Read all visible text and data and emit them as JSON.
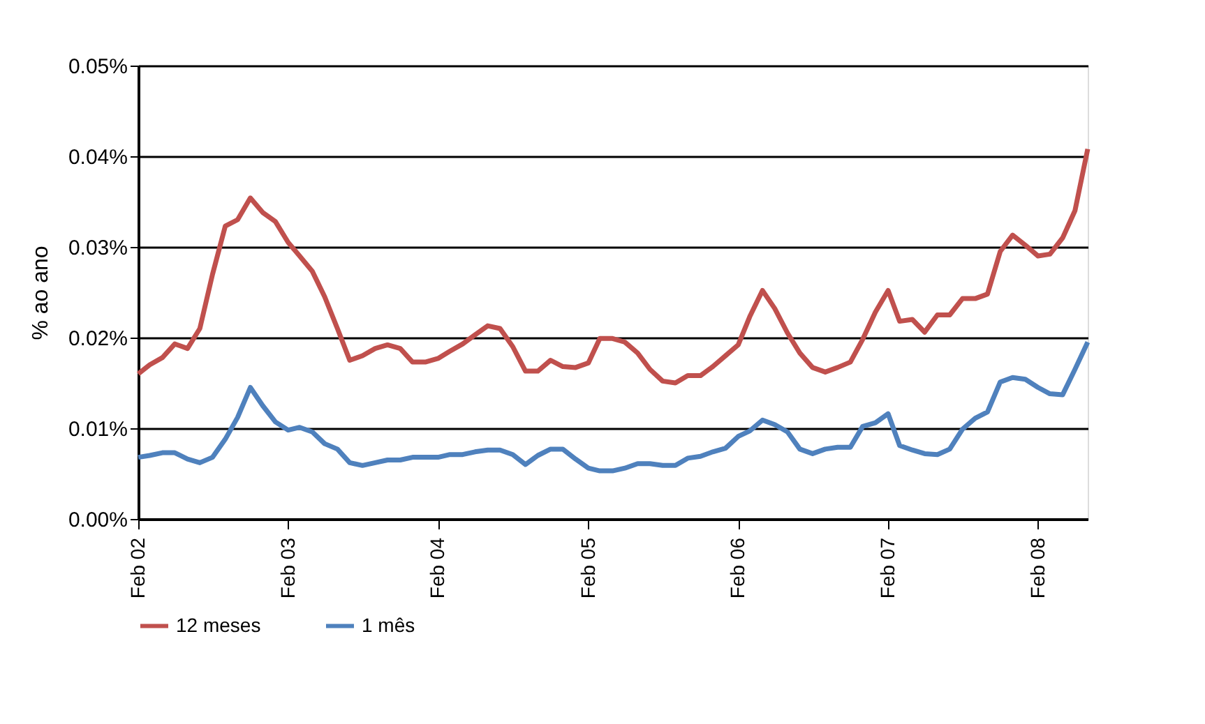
{
  "chart_data": {
    "type": "line",
    "ylabel": "% ao ano",
    "x": [
      "2002-02",
      "2002-03",
      "2002-04",
      "2002-05",
      "2002-06",
      "2002-07",
      "2002-08",
      "2002-09",
      "2002-10",
      "2002-11",
      "2002-12",
      "2003-01",
      "2003-02",
      "2003-03",
      "2003-04",
      "2003-05",
      "2003-06",
      "2003-07",
      "2003-08",
      "2003-09",
      "2003-10",
      "2003-11",
      "2003-12",
      "2004-01",
      "2004-02",
      "2004-03",
      "2004-04",
      "2004-05",
      "2004-06",
      "2004-07",
      "2004-08",
      "2004-09",
      "2004-10",
      "2004-11",
      "2004-12",
      "2005-01",
      "2005-02",
      "2005-03",
      "2005-04",
      "2005-05",
      "2005-06",
      "2005-07",
      "2005-08",
      "2005-09",
      "2005-10",
      "2005-11",
      "2005-12",
      "2006-01",
      "2006-02",
      "2006-03",
      "2006-04",
      "2006-05",
      "2006-06",
      "2006-07",
      "2006-08",
      "2006-09",
      "2006-10",
      "2006-11",
      "2006-12",
      "2007-01",
      "2007-02",
      "2007-03",
      "2007-04",
      "2007-05",
      "2007-06",
      "2007-07",
      "2007-08",
      "2007-09",
      "2007-10",
      "2007-11",
      "2007-12",
      "2008-01",
      "2008-02",
      "2008-03",
      "2008-04",
      "2008-05",
      "2008-06"
    ],
    "series": [
      {
        "name": "12 meses",
        "color": "#c0504d",
        "values": [
          0.016,
          0.017,
          0.0178,
          0.0193,
          0.0188,
          0.021,
          0.027,
          0.0323,
          0.033,
          0.0354,
          0.0338,
          0.0328,
          0.0305,
          0.029,
          0.0273,
          0.0245,
          0.021,
          0.0175,
          0.018,
          0.0188,
          0.0192,
          0.0188,
          0.0173,
          0.0173,
          0.0177,
          0.0185,
          0.0193,
          0.0203,
          0.0213,
          0.021,
          0.019,
          0.0163,
          0.0163,
          0.0175,
          0.0168,
          0.0167,
          0.0172,
          0.0199,
          0.0199,
          0.0195,
          0.0183,
          0.0165,
          0.0152,
          0.015,
          0.0158,
          0.0158,
          0.0168,
          0.018,
          0.0192,
          0.0223,
          0.0252,
          0.0232,
          0.0205,
          0.0183,
          0.0167,
          0.0162,
          0.0167,
          0.0173,
          0.0198,
          0.0228,
          0.0252,
          0.0218,
          0.022,
          0.0206,
          0.0225,
          0.0225,
          0.0243,
          0.0243,
          0.0248,
          0.0295,
          0.0313,
          0.0302,
          0.029,
          0.0292,
          0.031,
          0.034,
          0.0408
        ]
      },
      {
        "name": "1 mês",
        "color": "#4f81bd",
        "values": [
          0.0068,
          0.007,
          0.0073,
          0.0073,
          0.0066,
          0.0062,
          0.0068,
          0.0088,
          0.0112,
          0.0145,
          0.0125,
          0.0107,
          0.0098,
          0.0101,
          0.0096,
          0.0083,
          0.0077,
          0.0062,
          0.0059,
          0.0062,
          0.0065,
          0.0065,
          0.0068,
          0.0068,
          0.0068,
          0.0071,
          0.0071,
          0.0074,
          0.0076,
          0.0076,
          0.0071,
          0.006,
          0.007,
          0.0077,
          0.0077,
          0.0066,
          0.0056,
          0.0053,
          0.0053,
          0.0056,
          0.0061,
          0.0061,
          0.0059,
          0.0059,
          0.0067,
          0.0069,
          0.0074,
          0.0078,
          0.0091,
          0.0097,
          0.0109,
          0.0104,
          0.0096,
          0.0077,
          0.0072,
          0.0077,
          0.0079,
          0.0079,
          0.0102,
          0.0106,
          0.0116,
          0.0081,
          0.0076,
          0.0072,
          0.0071,
          0.0077,
          0.0099,
          0.0111,
          0.0118,
          0.0151,
          0.0156,
          0.0154,
          0.0145,
          0.0138,
          0.0137,
          0.0165,
          0.0195
        ]
      }
    ],
    "xlim": [
      "2002-02",
      "2008-06"
    ],
    "xticks": [
      {
        "value": "2002-02",
        "label": "Feb 02"
      },
      {
        "value": "2003-02",
        "label": "Feb 03"
      },
      {
        "value": "2004-02",
        "label": "Feb 04"
      },
      {
        "value": "2005-02",
        "label": "Feb 05"
      },
      {
        "value": "2006-02",
        "label": "Feb 06"
      },
      {
        "value": "2007-02",
        "label": "Feb 07"
      },
      {
        "value": "2008-02",
        "label": "Feb 08"
      }
    ],
    "ylim": [
      0,
      0.05
    ],
    "yticks": [
      {
        "value": 0,
        "label": "0.00%"
      },
      {
        "value": 0.01,
        "label": "0.01%"
      },
      {
        "value": 0.02,
        "label": "0.02%"
      },
      {
        "value": 0.03,
        "label": "0.03%"
      },
      {
        "value": 0.04,
        "label": "0.04%"
      },
      {
        "value": 0.05,
        "label": "0.05%"
      }
    ],
    "grid": "y",
    "legend": "bottom",
    "marker": "none",
    "line_style": "solid"
  }
}
